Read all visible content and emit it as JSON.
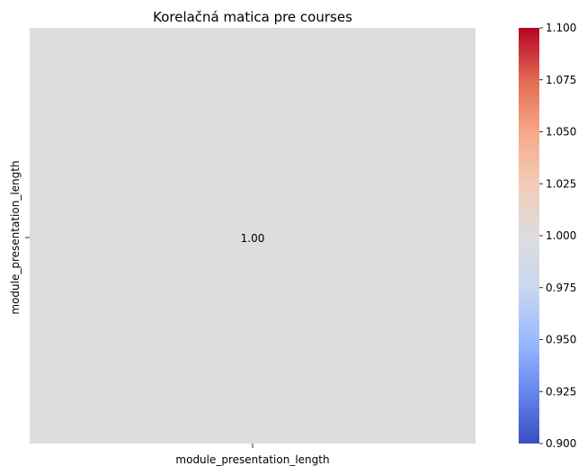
{
  "chart_data": {
    "type": "heatmap",
    "title": "Korelačná matica pre courses",
    "x_categories": [
      "module_presentation_length"
    ],
    "y_categories": [
      "module_presentation_length"
    ],
    "values": [
      [
        1.0
      ]
    ],
    "cell_labels": [
      [
        "1.00"
      ]
    ],
    "colormap": "coolwarm",
    "cell_color": "#dcdddd",
    "colorbar": {
      "range": [
        0.9,
        1.1
      ],
      "ticks": [
        0.9,
        0.925,
        0.95,
        0.975,
        1.0,
        1.025,
        1.05,
        1.075,
        1.1
      ],
      "tick_labels": [
        "0.900",
        "0.925",
        "0.950",
        "0.975",
        "1.000",
        "1.025",
        "1.050",
        "1.075",
        "1.100"
      ],
      "gradient_stops": [
        "#3b4cc0",
        "#6788ee",
        "#9abbff",
        "#c9d7f0",
        "#dddcdc",
        "#f2cbb7",
        "#f7a889",
        "#e26952",
        "#b40426"
      ]
    }
  }
}
